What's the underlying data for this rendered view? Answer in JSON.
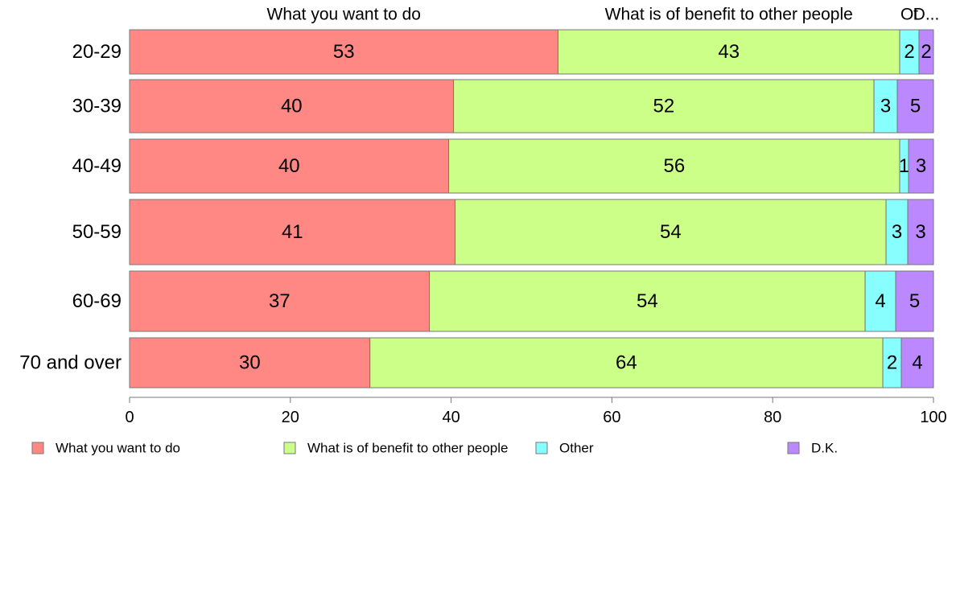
{
  "chart_data": {
    "type": "bar",
    "orientation": "horizontal",
    "stacked": true,
    "categories": [
      "20-29",
      "30-39",
      "40-49",
      "50-59",
      "60-69",
      "70 and over"
    ],
    "series": [
      {
        "name": "What you want to do",
        "values": [
          53.3,
          40.3,
          39.7,
          40.5,
          37.3,
          29.9
        ],
        "labels": [
          "53",
          "40",
          "40",
          "41",
          "37",
          "30"
        ],
        "color": "#ff8884"
      },
      {
        "name": "What is of benefit to other people",
        "values": [
          42.5,
          52.3,
          56.1,
          53.6,
          54.2,
          63.8
        ],
        "labels": [
          "43",
          "52",
          "56",
          "54",
          "54",
          "64"
        ],
        "color": "#ccff88"
      },
      {
        "name": "Other",
        "values": [
          2.4,
          2.9,
          1.1,
          2.7,
          3.8,
          2.3
        ],
        "labels": [
          "2",
          "3",
          "1",
          "3",
          "4",
          "2"
        ],
        "color": "#88ffff"
      },
      {
        "name": "D.K.",
        "values": [
          1.8,
          4.5,
          3.1,
          3.2,
          4.7,
          4.0
        ],
        "labels": [
          "2",
          "5",
          "3",
          "3",
          "5",
          "4"
        ],
        "color": "#bb88ff"
      }
    ],
    "top_labels": [
      "What you want to do",
      "What is of benefit to other people",
      "Ot",
      "D..."
    ],
    "xlim": [
      0,
      100
    ],
    "xticks": [
      "0",
      "20",
      "40",
      "60",
      "80",
      "100"
    ],
    "grid": false,
    "legend": "bottom"
  }
}
